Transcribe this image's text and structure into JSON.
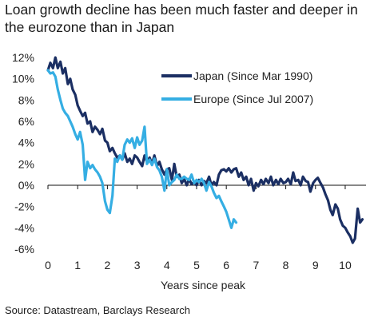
{
  "title": "Loan growth decline has been much faster and deeper in the eurozone than in Japan",
  "source": "Source: Datastream, Barclays Research",
  "chart_data": {
    "type": "line",
    "title": "Loan growth decline has been much faster and deeper in the eurozone than in Japan",
    "xlabel": "Years since peak",
    "ylabel": "",
    "xlim": [
      0,
      10.7
    ],
    "ylim": [
      -6,
      12
    ],
    "x_ticks": [
      0,
      1,
      2,
      3,
      4,
      5,
      6,
      7,
      8,
      9,
      10
    ],
    "x_tick_labels": [
      "0",
      "1",
      "2",
      "3",
      "4",
      "5",
      "6",
      "7",
      "8",
      "9",
      "10"
    ],
    "y_ticks": [
      12,
      10,
      8,
      6,
      4,
      2,
      0,
      -2,
      -4,
      -6
    ],
    "y_tick_labels": [
      "12%",
      "10%",
      "8%",
      "6%",
      "4%",
      "2%",
      "0%",
      "-2%",
      "-4%",
      "-6%"
    ],
    "grid": false,
    "legend_position": "top-right",
    "series": [
      {
        "name": "Japan (Since Mar 1990)",
        "color": "#1b2f63",
        "x": [
          0,
          0.08,
          0.17,
          0.25,
          0.33,
          0.42,
          0.5,
          0.58,
          0.67,
          0.75,
          0.83,
          0.92,
          1.0,
          1.08,
          1.17,
          1.25,
          1.33,
          1.42,
          1.5,
          1.58,
          1.67,
          1.75,
          1.83,
          1.92,
          2.0,
          2.08,
          2.17,
          2.25,
          2.33,
          2.42,
          2.5,
          2.58,
          2.67,
          2.75,
          2.83,
          2.92,
          3.0,
          3.08,
          3.17,
          3.25,
          3.33,
          3.42,
          3.5,
          3.58,
          3.67,
          3.75,
          3.83,
          3.92,
          4.0,
          4.08,
          4.17,
          4.25,
          4.33,
          4.42,
          4.5,
          4.58,
          4.67,
          4.75,
          4.83,
          4.92,
          5.0,
          5.08,
          5.17,
          5.25,
          5.33,
          5.42,
          5.5,
          5.58,
          5.67,
          5.75,
          5.83,
          5.92,
          6.0,
          6.08,
          6.17,
          6.25,
          6.33,
          6.42,
          6.5,
          6.58,
          6.67,
          6.75,
          6.83,
          6.92,
          7.0,
          7.08,
          7.17,
          7.25,
          7.33,
          7.42,
          7.5,
          7.58,
          7.67,
          7.75,
          7.83,
          7.92,
          8.0,
          8.08,
          8.17,
          8.25,
          8.33,
          8.42,
          8.5,
          8.58,
          8.67,
          8.75,
          8.83,
          8.92,
          9.0,
          9.08,
          9.17,
          9.25,
          9.33,
          9.42,
          9.5,
          9.58,
          9.67,
          9.75,
          9.83,
          9.92,
          10.0,
          10.08,
          10.17,
          10.25,
          10.33,
          10.42,
          10.5,
          10.58
        ],
        "y": [
          10.8,
          11.5,
          11.0,
          12.0,
          11.0,
          11.6,
          10.5,
          11.0,
          9.5,
          10.0,
          9.0,
          8.5,
          7.5,
          7.0,
          6.5,
          6.8,
          5.8,
          6.0,
          5.0,
          5.5,
          5.2,
          4.8,
          5.3,
          4.2,
          4.0,
          3.2,
          3.5,
          3.0,
          2.6,
          2.8,
          2.4,
          3.0,
          2.2,
          2.5,
          2.0,
          2.8,
          2.6,
          2.2,
          1.8,
          2.8,
          2.2,
          2.6,
          2.0,
          2.8,
          1.8,
          2.2,
          1.5,
          1.0,
          1.5,
          1.6,
          0.5,
          2.0,
          0.8,
          1.0,
          0.2,
          0.6,
          0.0,
          0.6,
          0.1,
          0.3,
          0.0,
          0.5,
          0.0,
          0.4,
          0.2,
          0.8,
          0.0,
          0.3,
          0.0,
          1.0,
          1.4,
          1.5,
          1.3,
          1.6,
          1.2,
          1.5,
          1.6,
          0.8,
          1.2,
          0.5,
          0.8,
          0.0,
          0.6,
          -0.5,
          0.2,
          -0.1,
          0.5,
          0.1,
          0.6,
          0.2,
          0.8,
          0.0,
          0.5,
          0.1,
          0.6,
          0.2,
          0.3,
          0.6,
          0.1,
          1.2,
          0.4,
          0.5,
          0.0,
          0.8,
          0.4,
          0.3,
          -0.6,
          0.2,
          0.5,
          0.7,
          0.2,
          -0.2,
          -0.8,
          -1.4,
          -2.3,
          -2.8,
          -1.8,
          -2.2,
          -3.2,
          -3.8,
          -4.0,
          -4.4,
          -4.8,
          -5.4,
          -5.0,
          -2.2,
          -3.5,
          -3.2
        ]
      },
      {
        "name": "Europe (Since Jul 2007)",
        "color": "#35aee3",
        "x": [
          0,
          0.08,
          0.17,
          0.25,
          0.33,
          0.42,
          0.5,
          0.58,
          0.67,
          0.75,
          0.83,
          0.92,
          1.0,
          1.08,
          1.17,
          1.25,
          1.33,
          1.42,
          1.5,
          1.58,
          1.67,
          1.75,
          1.83,
          1.92,
          2.0,
          2.08,
          2.17,
          2.25,
          2.33,
          2.42,
          2.5,
          2.58,
          2.67,
          2.75,
          2.83,
          2.92,
          3.0,
          3.08,
          3.17,
          3.25,
          3.33,
          3.42,
          3.5,
          3.58,
          3.67,
          3.75,
          3.83,
          3.92,
          4.0,
          4.08,
          4.17,
          4.25,
          4.33,
          4.42,
          4.5,
          4.58,
          4.67,
          4.75,
          4.83,
          4.92,
          5.0,
          5.08,
          5.17,
          5.25,
          5.33,
          5.42,
          5.5,
          5.58,
          5.67,
          5.75,
          5.83,
          5.92,
          6.0,
          6.08,
          6.17,
          6.25,
          6.33
        ],
        "y": [
          10.8,
          10.5,
          10.6,
          10.2,
          9.0,
          8.0,
          7.2,
          6.8,
          6.5,
          6.0,
          5.5,
          4.8,
          4.3,
          5.0,
          3.8,
          0.5,
          2.2,
          1.6,
          1.9,
          1.5,
          1.2,
          0.8,
          0.2,
          -1.5,
          -2.3,
          -2.6,
          -1.0,
          2.5,
          2.2,
          2.8,
          2.4,
          3.8,
          4.3,
          4.0,
          4.4,
          3.5,
          4.5,
          3.8,
          4.2,
          5.5,
          2.0,
          2.4,
          1.9,
          2.5,
          1.7,
          1.4,
          0.8,
          -0.5,
          1.5,
          0.0,
          0.3,
          0.5,
          1.0,
          0.6,
          0.6,
          0.8,
          0.6,
          0.5,
          1.0,
          0.2,
          0.5,
          0.3,
          0.6,
          0.2,
          -0.5,
          0.3,
          -0.1,
          -0.7,
          -1.2,
          -1.0,
          -1.5,
          -2.0,
          -2.5,
          -3.2,
          -4.0,
          -3.2,
          -3.5
        ]
      }
    ]
  }
}
